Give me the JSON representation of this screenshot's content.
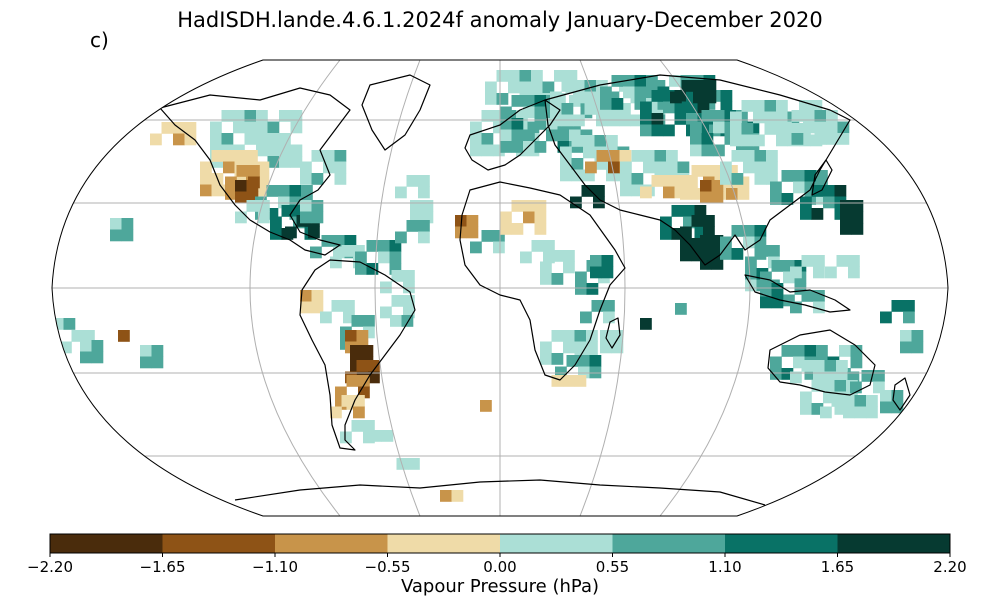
{
  "title": "HadISDH.lande.4.6.1.2024f anomaly January-December 2020",
  "panel_label": "c)",
  "colorbar": {
    "label": "Vapour Pressure (hPa)",
    "ticks": [
      "−2.20",
      "−1.65",
      "−1.10",
      "−0.55",
      "0.00",
      "0.55",
      "1.10",
      "1.65",
      "2.20"
    ],
    "tick_values": [
      -2.2,
      -1.65,
      -1.1,
      -0.55,
      0.0,
      0.55,
      1.1,
      1.65,
      2.2
    ],
    "colors": [
      "#4a2c0c",
      "#8e5316",
      "#c8944a",
      "#efdba8",
      "#abdfd6",
      "#4ea79b",
      "#097266",
      "#063a31"
    ]
  },
  "map": {
    "projection": "Robinson",
    "graticule": true,
    "coastlines": true
  }
}
